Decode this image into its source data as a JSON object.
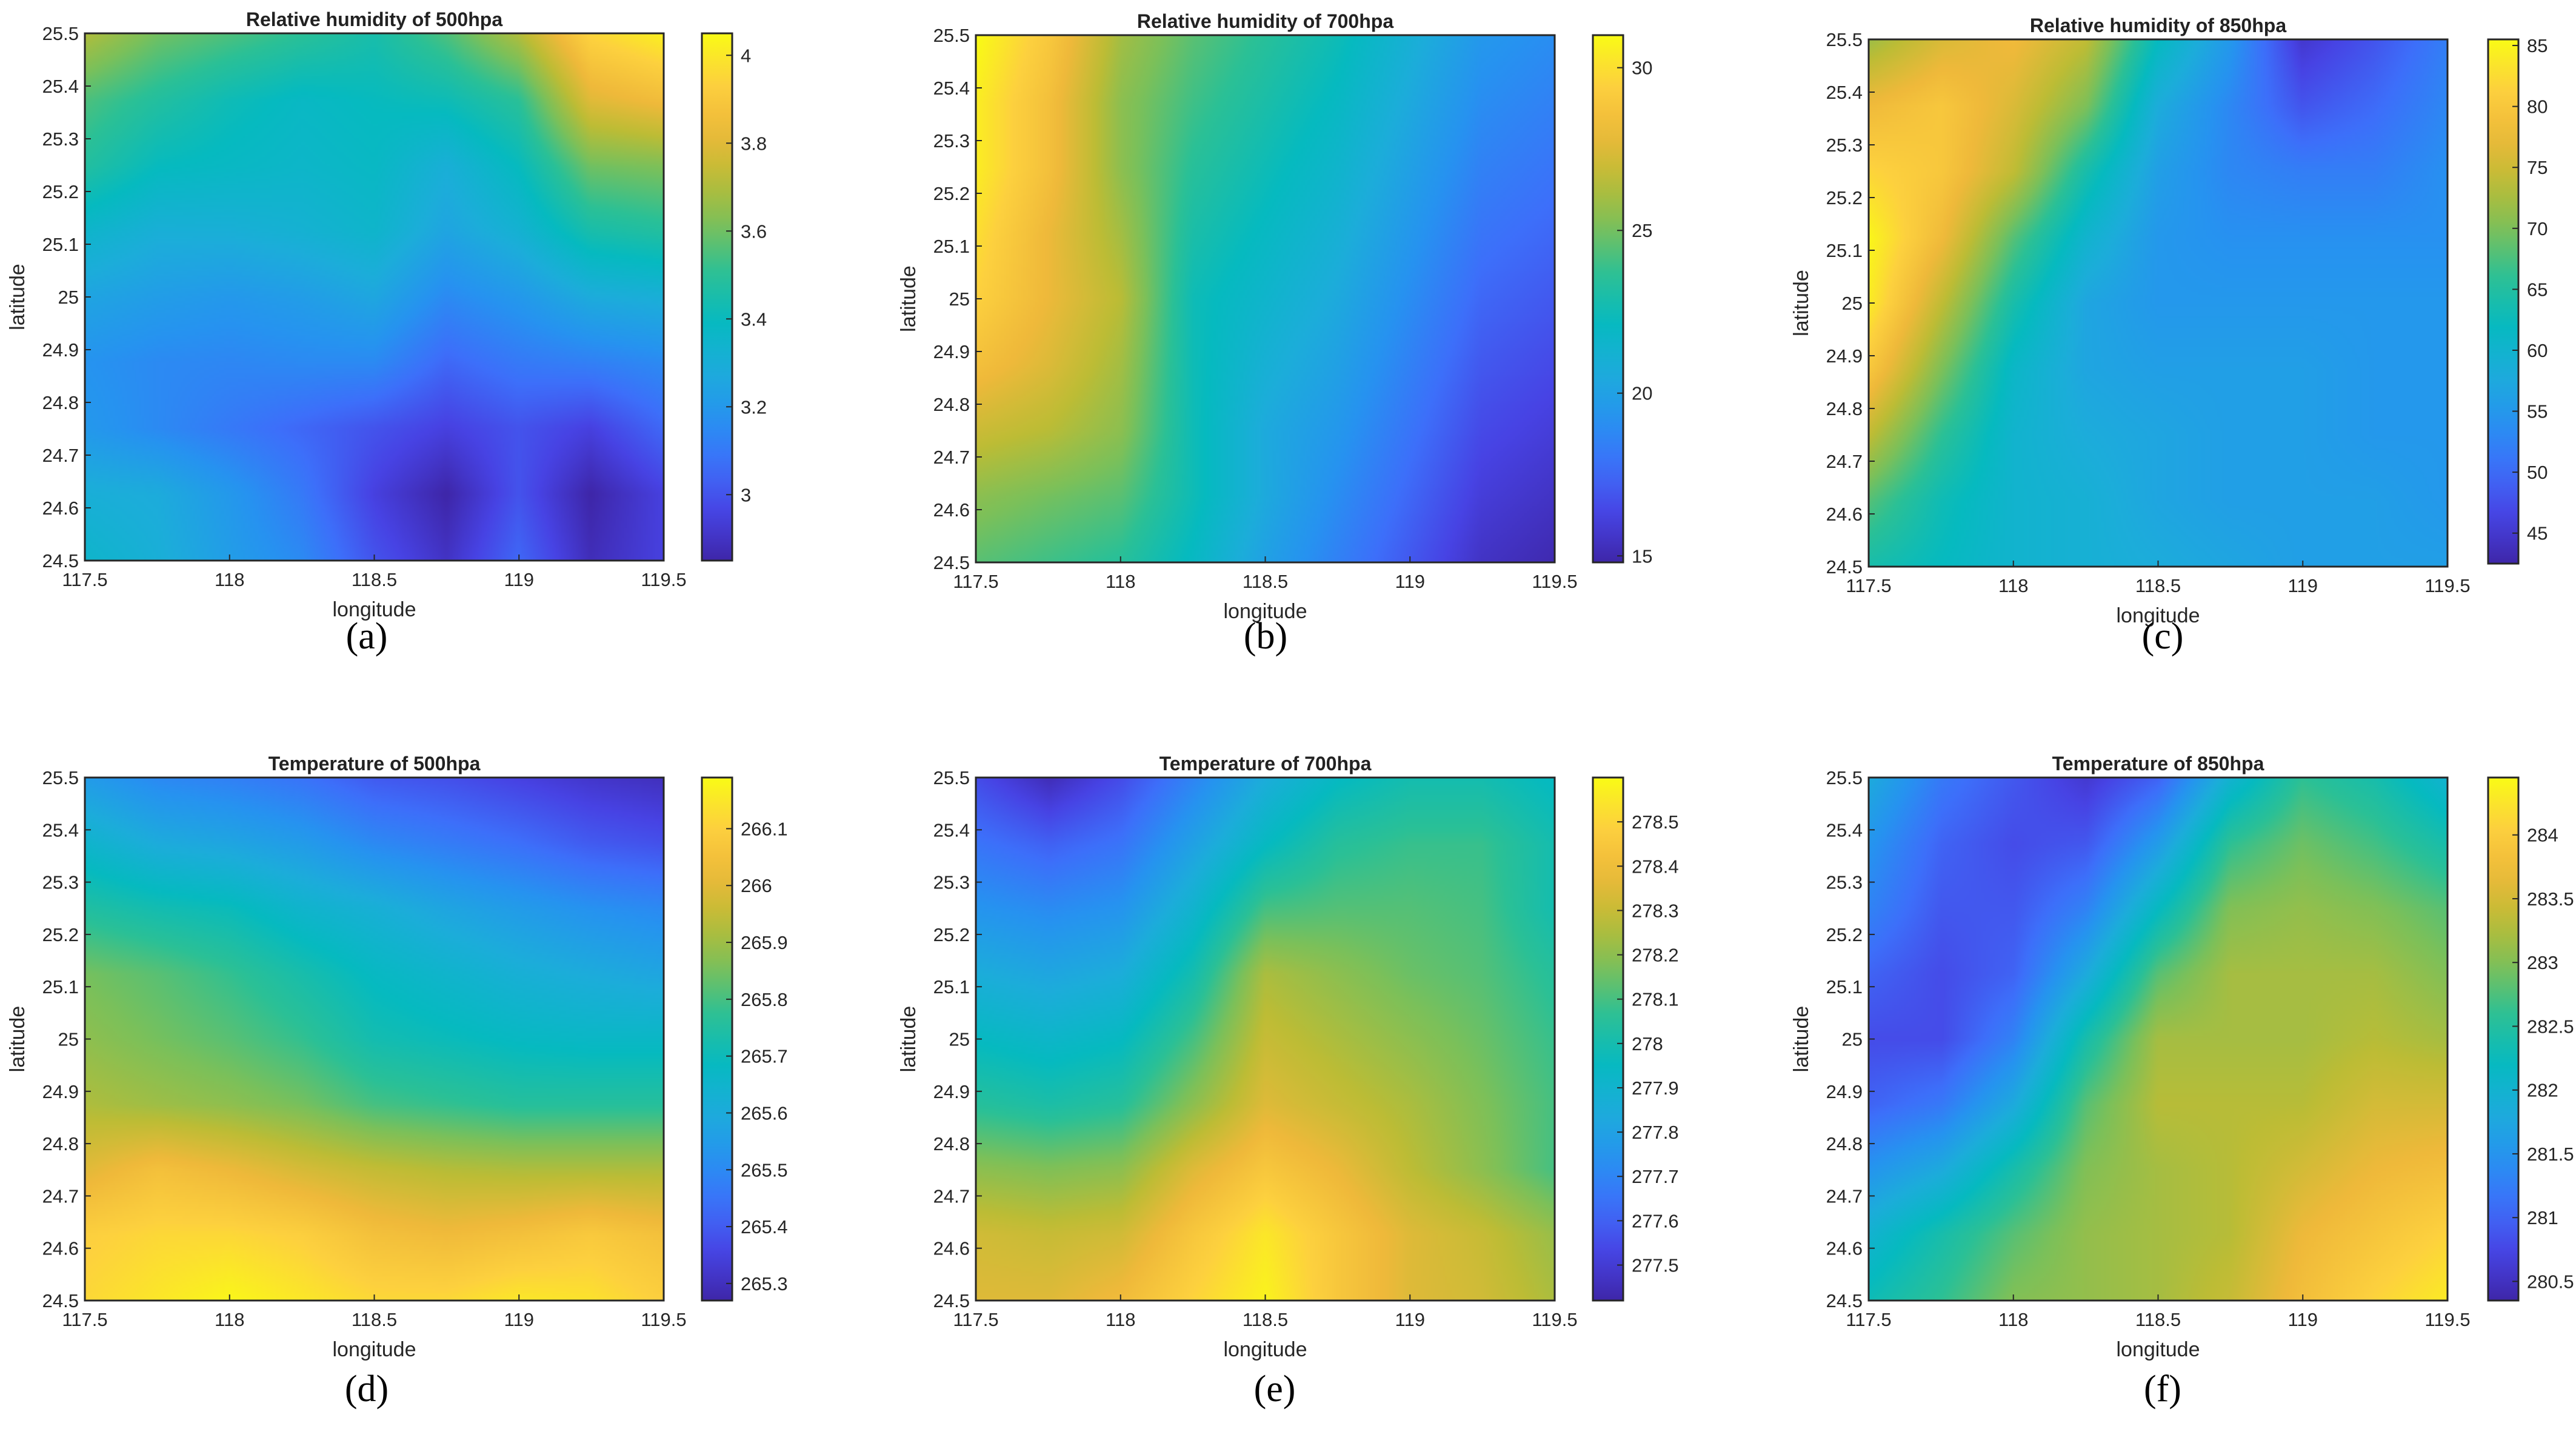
{
  "figure": {
    "axis_common": {
      "xlabel": "longitude",
      "ylabel": "latitude",
      "xlim": [
        117.5,
        119.5
      ],
      "ylim": [
        24.5,
        25.5
      ],
      "xticks": [
        "117.5",
        "118",
        "118.5",
        "119",
        "119.5"
      ],
      "yticks": [
        "24.5",
        "24.6",
        "24.7",
        "24.8",
        "24.9",
        "25",
        "25.1",
        "25.2",
        "25.3",
        "25.4",
        "25.5"
      ]
    },
    "colormap": [
      "#3e26a8",
      "#4743e4",
      "#3d6ffa",
      "#2693f0",
      "#1cadda",
      "#06bac0",
      "#2bc096",
      "#7bc05a",
      "#bdbc35",
      "#efb93a",
      "#fdd13e",
      "#f9fb15"
    ]
  },
  "chart_data": [
    {
      "type": "heatmap",
      "panel": "(a)",
      "title": "Relative humidity of 500hpa",
      "xlabel": "longitude",
      "ylabel": "latitude",
      "x": [
        117.5,
        117.75,
        118.0,
        118.25,
        118.5,
        118.75,
        119.0,
        119.25,
        119.5
      ],
      "y": [
        25.5,
        25.375,
        25.25,
        25.125,
        25.0,
        24.875,
        24.75,
        24.625,
        24.5
      ],
      "z": [
        [
          3.7,
          3.6,
          3.55,
          3.5,
          3.45,
          3.55,
          3.7,
          3.95,
          4.02
        ],
        [
          3.55,
          3.48,
          3.42,
          3.38,
          3.4,
          3.42,
          3.5,
          3.8,
          3.85
        ],
        [
          3.48,
          3.4,
          3.38,
          3.36,
          3.38,
          3.3,
          3.4,
          3.6,
          3.62
        ],
        [
          3.35,
          3.3,
          3.3,
          3.32,
          3.35,
          3.25,
          3.32,
          3.45,
          3.48
        ],
        [
          3.25,
          3.22,
          3.2,
          3.22,
          3.26,
          3.15,
          3.2,
          3.28,
          3.3
        ],
        [
          3.18,
          3.15,
          3.14,
          3.15,
          3.15,
          3.05,
          3.1,
          3.12,
          3.15
        ],
        [
          3.2,
          3.15,
          3.1,
          3.05,
          3.0,
          2.95,
          3.0,
          2.95,
          3.05
        ],
        [
          3.3,
          3.28,
          3.2,
          3.1,
          2.95,
          2.85,
          3.0,
          2.85,
          2.95
        ],
        [
          3.35,
          3.3,
          3.22,
          3.15,
          3.0,
          2.9,
          3.05,
          2.88,
          2.95
        ]
      ],
      "colorbar_ticks": [
        3,
        3.2,
        3.4,
        3.6,
        3.8,
        4
      ],
      "clim": [
        2.85,
        4.05
      ],
      "caption": "(a)"
    },
    {
      "type": "heatmap",
      "panel": "(b)",
      "title": "Relative humidity of 700hpa",
      "xlabel": "longitude",
      "ylabel": "latitude",
      "x": [
        117.5,
        117.75,
        118.0,
        118.25,
        118.5,
        118.75,
        119.0,
        119.25,
        119.5
      ],
      "y": [
        25.5,
        25.375,
        25.25,
        25.125,
        25.0,
        24.875,
        24.75,
        24.625,
        24.5
      ],
      "z": [
        [
          31.0,
          29.0,
          26.0,
          24.5,
          23.5,
          22.5,
          21.0,
          19.5,
          19.0
        ],
        [
          30.5,
          28.5,
          25.5,
          24.0,
          23.0,
          22.0,
          20.5,
          19.0,
          18.5
        ],
        [
          30.5,
          28.5,
          25.5,
          23.5,
          22.5,
          21.5,
          20.0,
          18.5,
          18.0
        ],
        [
          30.0,
          28.0,
          26.0,
          23.0,
          22.0,
          21.0,
          19.5,
          18.0,
          17.5
        ],
        [
          29.5,
          28.0,
          26.5,
          22.5,
          21.5,
          20.5,
          19.0,
          17.5,
          17.0
        ],
        [
          28.5,
          27.5,
          26.0,
          22.5,
          21.0,
          20.0,
          18.5,
          17.0,
          16.5
        ],
        [
          27.0,
          26.5,
          25.5,
          22.5,
          20.5,
          19.5,
          18.0,
          16.5,
          16.0
        ],
        [
          25.5,
          25.0,
          24.5,
          22.5,
          20.5,
          19.0,
          17.5,
          16.0,
          15.5
        ],
        [
          24.5,
          24.0,
          23.5,
          22.0,
          20.0,
          18.5,
          17.0,
          15.5,
          15.0
        ]
      ],
      "colorbar_ticks": [
        15,
        20,
        25,
        30
      ],
      "clim": [
        14.8,
        31.0
      ],
      "caption": "(b)"
    },
    {
      "type": "heatmap",
      "panel": "(c)",
      "title": "Relative humidity of 850hpa",
      "xlabel": "longitude",
      "ylabel": "latitude",
      "x": [
        117.5,
        117.75,
        118.0,
        118.25,
        118.5,
        118.75,
        119.0,
        119.25,
        119.5
      ],
      "y": [
        25.5,
        25.375,
        25.25,
        25.125,
        25.0,
        24.875,
        24.75,
        24.625,
        24.5
      ],
      "z": [
        [
          72,
          76,
          78,
          74,
          62,
          55,
          45,
          48,
          52
        ],
        [
          78,
          80,
          76,
          70,
          58,
          53,
          48,
          50,
          53
        ],
        [
          82,
          80,
          74,
          64,
          56,
          53,
          52,
          52,
          54
        ],
        [
          85,
          78,
          68,
          60,
          55,
          54,
          54,
          54,
          54
        ],
        [
          84,
          74,
          64,
          57,
          55,
          55,
          55,
          55,
          55
        ],
        [
          80,
          70,
          61,
          57,
          56,
          56,
          56,
          55,
          55
        ],
        [
          74,
          66,
          60,
          58,
          57,
          56,
          56,
          55,
          55
        ],
        [
          68,
          63,
          60,
          59,
          57,
          56,
          56,
          56,
          55
        ],
        [
          64,
          62,
          60,
          59,
          58,
          57,
          56,
          56,
          56
        ]
      ],
      "colorbar_ticks": [
        45,
        50,
        55,
        60,
        65,
        70,
        75,
        80,
        85
      ],
      "clim": [
        42.5,
        85.5
      ],
      "caption": "(c)"
    },
    {
      "type": "heatmap",
      "panel": "(d)",
      "title": "Temperature of 500hpa",
      "xlabel": "longitude",
      "ylabel": "latitude",
      "x": [
        117.5,
        117.75,
        118.0,
        118.25,
        118.5,
        118.75,
        119.0,
        119.25,
        119.5
      ],
      "y": [
        25.5,
        25.375,
        25.25,
        25.125,
        25.0,
        24.875,
        24.75,
        24.625,
        24.5
      ],
      "z": [
        [
          265.55,
          265.5,
          265.48,
          265.45,
          265.4,
          265.38,
          265.35,
          265.32,
          265.3
        ],
        [
          265.65,
          265.6,
          265.58,
          265.55,
          265.5,
          265.47,
          265.44,
          265.4,
          265.38
        ],
        [
          265.75,
          265.72,
          265.7,
          265.65,
          265.62,
          265.58,
          265.55,
          265.52,
          265.5
        ],
        [
          265.85,
          265.82,
          265.78,
          265.73,
          265.68,
          265.65,
          265.62,
          265.6,
          265.58
        ],
        [
          265.88,
          265.85,
          265.82,
          265.78,
          265.72,
          265.7,
          265.68,
          265.67,
          265.67
        ],
        [
          265.92,
          265.9,
          265.88,
          265.85,
          265.8,
          265.78,
          265.76,
          265.76,
          265.76
        ],
        [
          266.0,
          266.05,
          266.02,
          265.98,
          265.95,
          265.93,
          265.92,
          265.92,
          265.92
        ],
        [
          266.1,
          266.12,
          266.12,
          266.1,
          266.05,
          266.03,
          266.05,
          266.08,
          266.05
        ],
        [
          266.12,
          266.15,
          266.18,
          266.15,
          266.12,
          266.12,
          266.15,
          266.14,
          266.1
        ]
      ],
      "colorbar_ticks": [
        265.3,
        265.4,
        265.5,
        265.6,
        265.7,
        265.8,
        265.9,
        266,
        266.1
      ],
      "clim": [
        265.27,
        266.19
      ],
      "caption": "(d)"
    },
    {
      "type": "heatmap",
      "panel": "(e)",
      "title": "Temperature of 700hpa",
      "xlabel": "longitude",
      "ylabel": "latitude",
      "x": [
        117.5,
        117.75,
        118.0,
        118.25,
        118.5,
        118.75,
        119.0,
        119.25,
        119.5
      ],
      "y": [
        25.5,
        25.375,
        25.25,
        25.125,
        25.0,
        24.875,
        24.75,
        24.625,
        24.5
      ],
      "z": [
        [
          277.55,
          277.45,
          277.55,
          277.7,
          277.85,
          277.95,
          278.0,
          278.0,
          277.95
        ],
        [
          277.65,
          277.6,
          277.65,
          277.8,
          277.95,
          278.05,
          278.08,
          278.08,
          278.0
        ],
        [
          277.75,
          277.72,
          277.75,
          277.9,
          278.1,
          278.12,
          278.12,
          278.1,
          278.0
        ],
        [
          277.85,
          277.82,
          277.85,
          278.0,
          278.25,
          278.2,
          278.15,
          278.12,
          278.05
        ],
        [
          277.95,
          277.92,
          277.95,
          278.1,
          278.3,
          278.25,
          278.2,
          278.15,
          278.08
        ],
        [
          278.05,
          278.02,
          278.05,
          278.2,
          278.35,
          278.3,
          278.25,
          278.18,
          278.1
        ],
        [
          278.2,
          278.18,
          278.2,
          278.35,
          278.45,
          278.38,
          278.28,
          278.2,
          278.1
        ],
        [
          278.32,
          278.3,
          278.32,
          278.45,
          278.55,
          278.45,
          278.35,
          278.3,
          278.22
        ],
        [
          278.35,
          278.35,
          278.4,
          278.5,
          278.58,
          278.45,
          278.35,
          278.32,
          278.25
        ]
      ],
      "colorbar_ticks": [
        277.5,
        277.6,
        277.7,
        277.8,
        277.9,
        278,
        278.1,
        278.2,
        278.3,
        278.4,
        278.5
      ],
      "clim": [
        277.42,
        278.6
      ],
      "caption": "(e)"
    },
    {
      "type": "heatmap",
      "panel": "(f)",
      "title": "Temperature of 850hpa",
      "xlabel": "longitude",
      "ylabel": "latitude",
      "x": [
        117.5,
        117.75,
        118.0,
        118.25,
        118.5,
        118.75,
        119.0,
        119.25,
        119.5
      ],
      "y": [
        25.5,
        25.375,
        25.25,
        25.125,
        25.0,
        24.875,
        24.75,
        24.625,
        24.5
      ],
      "z": [
        [
          281.8,
          281.2,
          280.9,
          280.6,
          281.0,
          282.0,
          282.6,
          282.4,
          282.0
        ],
        [
          281.5,
          281.0,
          280.8,
          280.9,
          281.6,
          282.6,
          282.9,
          282.7,
          282.4
        ],
        [
          281.3,
          280.9,
          280.9,
          281.3,
          282.2,
          283.0,
          283.1,
          283.0,
          282.8
        ],
        [
          281.0,
          280.8,
          281.0,
          281.8,
          282.8,
          283.2,
          283.2,
          283.2,
          283.0
        ],
        [
          280.8,
          280.8,
          281.3,
          282.4,
          283.2,
          283.2,
          283.2,
          283.3,
          283.2
        ],
        [
          281.0,
          281.2,
          281.8,
          282.8,
          283.3,
          283.3,
          283.3,
          283.5,
          283.5
        ],
        [
          281.5,
          281.8,
          282.4,
          283.0,
          283.2,
          283.3,
          283.5,
          283.7,
          283.8
        ],
        [
          282.0,
          282.4,
          282.8,
          283.1,
          283.2,
          283.3,
          283.7,
          283.9,
          284.1
        ],
        [
          282.3,
          282.6,
          283.0,
          283.1,
          283.2,
          283.4,
          283.8,
          284.1,
          284.3
        ]
      ],
      "colorbar_ticks": [
        280.5,
        281,
        281.5,
        282,
        282.5,
        283,
        283.5,
        284
      ],
      "clim": [
        280.35,
        284.45
      ],
      "caption": "(f)"
    }
  ]
}
